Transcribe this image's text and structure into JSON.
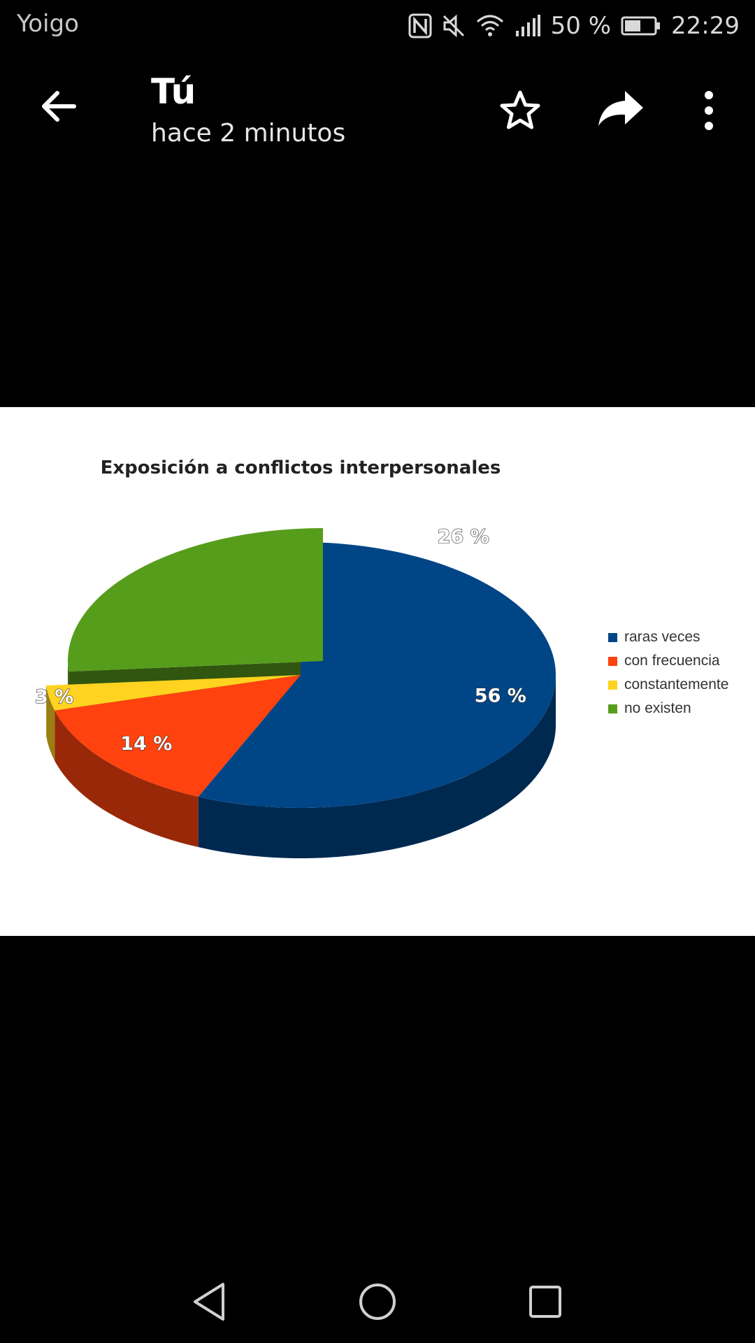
{
  "status": {
    "carrier": "Yoigo",
    "battery": "50 %",
    "time": "22:29",
    "icons": [
      "nfc-icon",
      "mute-icon",
      "wifi-icon",
      "signal-icon",
      "battery-icon"
    ]
  },
  "appbar": {
    "title": "Tú",
    "subtitle": "hace 2 minutos",
    "icons": [
      "back-arrow-icon",
      "star-icon",
      "share-icon",
      "more-vert-icon"
    ]
  },
  "chart_data": {
    "type": "pie",
    "title": "Exposición a conflictos interpersonales",
    "categories": [
      "raras veces",
      "con frecuencia",
      "constantemente",
      "no existen"
    ],
    "values": [
      56,
      14,
      3,
      26
    ],
    "labels": [
      "56 %",
      "14 %",
      "3 %",
      "26 %"
    ],
    "colors": [
      "#004586",
      "#FF420E",
      "#FFD320",
      "#579D1C"
    ],
    "legend": "right",
    "exploded": "no existen"
  },
  "navbar": {
    "icons": [
      "back-triangle-icon",
      "home-circle-icon",
      "recents-square-icon"
    ]
  }
}
